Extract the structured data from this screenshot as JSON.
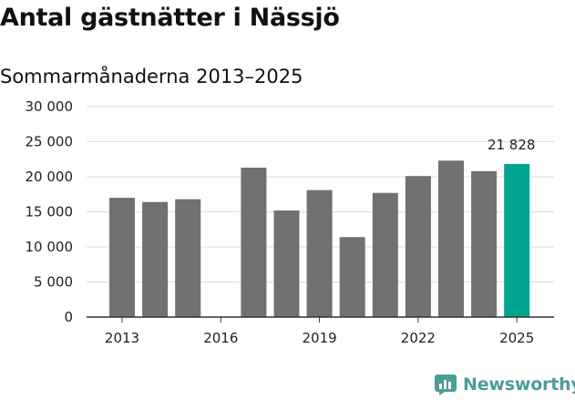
{
  "title": "Antal gästnätter i Nässjö",
  "subtitle": "Sommarmånaderna 2013–2025",
  "brand": {
    "name": "Newsworthy",
    "icon": "newsworthy-logo-icon"
  },
  "colors": {
    "bar": "#717073",
    "highlight": "#00a491",
    "grid": "#dddddd",
    "brand": "#4a9e96"
  },
  "chart_data": {
    "type": "bar",
    "title": "Antal gästnätter i Nässjö",
    "subtitle": "Sommarmånaderna 2013–2025",
    "xlabel": "",
    "ylabel": "",
    "ylim": [
      0,
      30000
    ],
    "yticks": [
      0,
      5000,
      10000,
      15000,
      20000,
      25000,
      30000
    ],
    "ytick_labels": [
      "0",
      "5 000",
      "10 000",
      "15 000",
      "20 000",
      "25 000",
      "30 000"
    ],
    "categories": [
      "2013",
      "2014",
      "2015",
      "2016",
      "2017",
      "2018",
      "2019",
      "2020",
      "2021",
      "2022",
      "2023",
      "2024",
      "2025"
    ],
    "xtick_labels": [
      "2013",
      "2016",
      "2019",
      "2022",
      "2025"
    ],
    "values": [
      17000,
      16400,
      16800,
      null,
      21300,
      15200,
      18100,
      11400,
      17700,
      20100,
      22300,
      20800,
      21828
    ],
    "highlight": {
      "category": "2025",
      "label": "21 828"
    },
    "grid": true,
    "legend": "none"
  }
}
